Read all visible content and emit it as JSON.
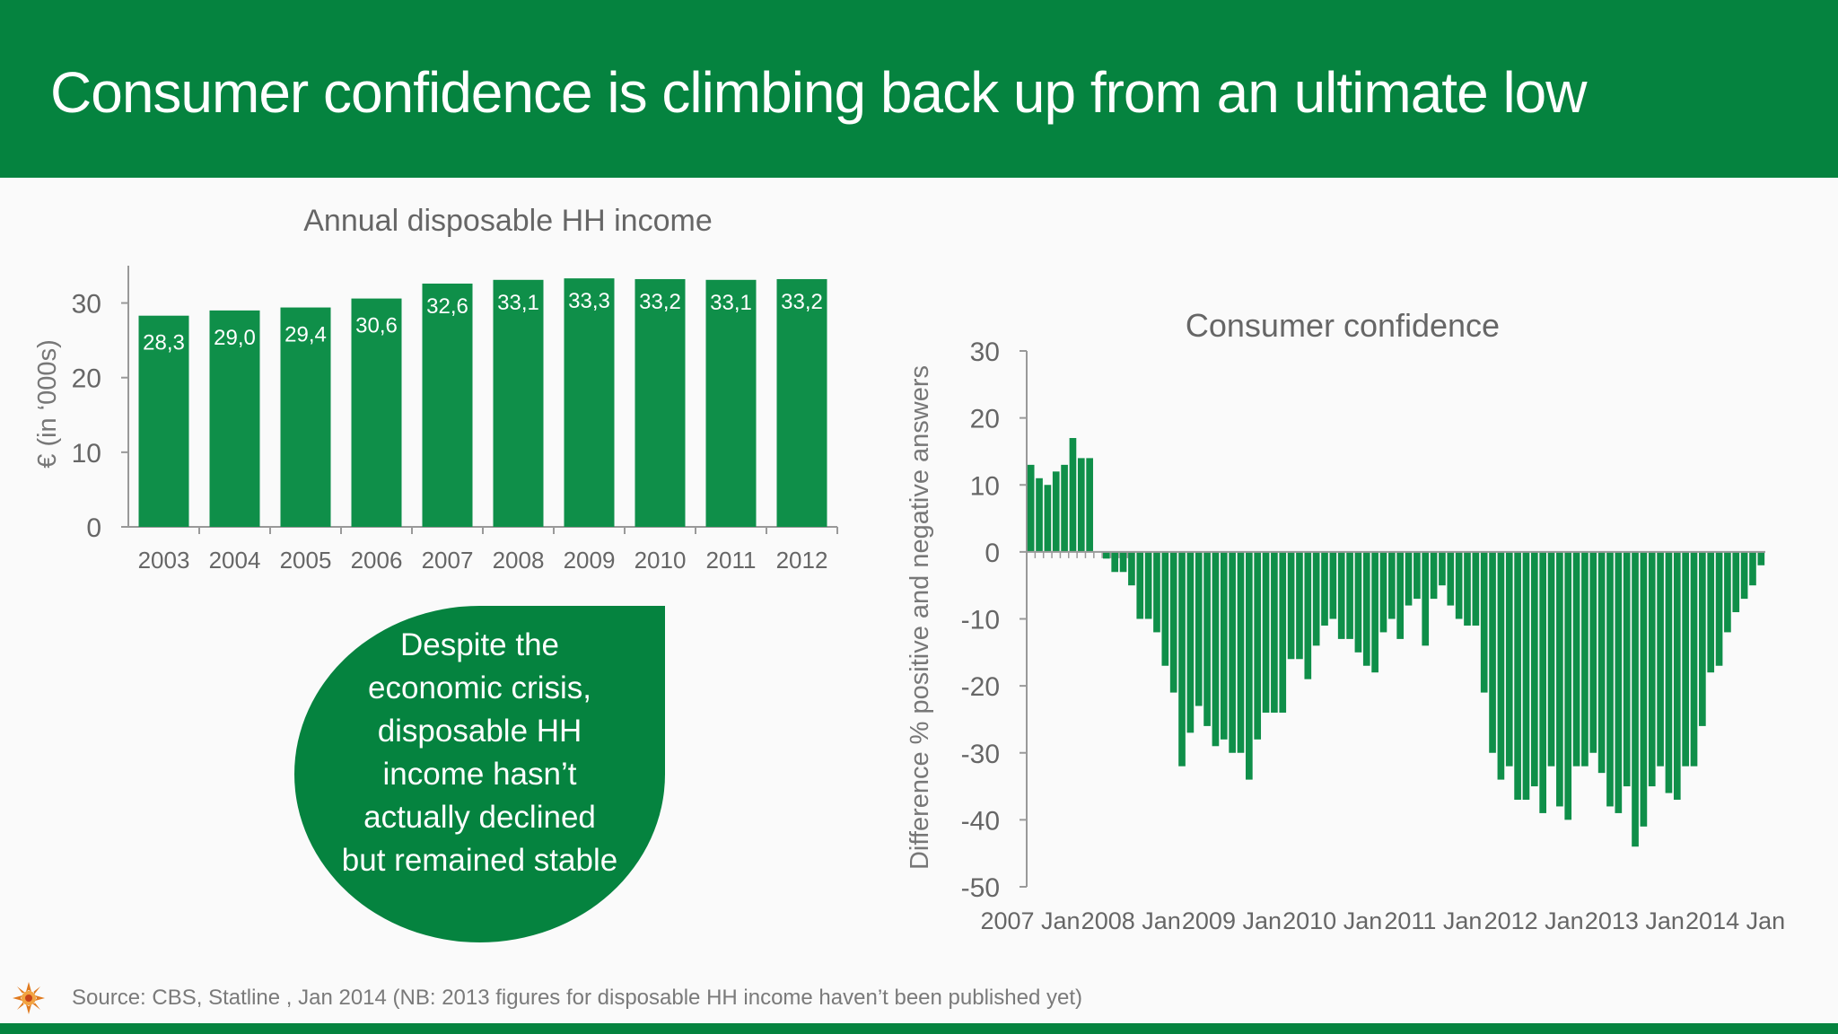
{
  "header": {
    "title": "Consumer confidence is climbing back up from an ultimate low"
  },
  "callout": {
    "text": "Despite the economic crisis, disposable HH income hasn’t actually declined but remained stable"
  },
  "footer": {
    "source": "Source: CBS, Statline , Jan 2014 (NB: 2013 figures for disposable HH income haven’t been published yet)"
  },
  "colors": {
    "brand_green": "#05833f",
    "bar_green": "#0f8f49"
  },
  "chart_data": [
    {
      "type": "bar",
      "title": "Annual disposable HH income",
      "xlabel": "",
      "ylabel": "€ (in ‘000s)",
      "categories": [
        "2003",
        "2004",
        "2005",
        "2006",
        "2007",
        "2008",
        "2009",
        "2010",
        "2011",
        "2012"
      ],
      "values": [
        28.3,
        29.0,
        29.4,
        30.6,
        32.6,
        33.1,
        33.3,
        33.2,
        33.1,
        33.2
      ],
      "data_labels": [
        "28,3",
        "29,0",
        "29,4",
        "30,6",
        "32,6",
        "33,1",
        "33,3",
        "33,2",
        "33,1",
        "33,2"
      ],
      "yticks": [
        "0",
        "10",
        "20",
        "30"
      ],
      "ylim": [
        0,
        35
      ],
      "grid": false,
      "legend": "none"
    },
    {
      "type": "bar",
      "title": "Consumer confidence",
      "xlabel": "",
      "ylabel": "Difference % positive and negative answers",
      "x_tick_labels": [
        "2007 Jan",
        "2008 Jan",
        "2009 Jan",
        "2010 Jan",
        "2011 Jan",
        "2012 Jan",
        "2013 Jan",
        "2014 Jan"
      ],
      "yticks": [
        "30",
        "20",
        "10",
        "0",
        "-10",
        "-20",
        "-30",
        "-40",
        "-50"
      ],
      "ylim": [
        -50,
        30
      ],
      "start": "2007 Jan",
      "frequency": "monthly",
      "values": [
        13,
        11,
        10,
        12,
        13,
        17,
        14,
        14,
        0,
        -1,
        -3,
        -3,
        -5,
        -10,
        -10,
        -12,
        -17,
        -21,
        -32,
        -27,
        -23,
        -26,
        -29,
        -28,
        -30,
        -30,
        -34,
        -28,
        -24,
        -24,
        -24,
        -16,
        -16,
        -19,
        -14,
        -11,
        -10,
        -13,
        -13,
        -15,
        -17,
        -18,
        -12,
        -10,
        -13,
        -8,
        -7,
        -14,
        -7,
        -5,
        -8,
        -10,
        -11,
        -11,
        -21,
        -30,
        -34,
        -32,
        -37,
        -37,
        -35,
        -39,
        -32,
        -38,
        -40,
        -32,
        -32,
        -30,
        -33,
        -38,
        -39,
        -35,
        -44,
        -41,
        -35,
        -32,
        -36,
        -37,
        -32,
        -32,
        -26,
        -18,
        -17,
        -12,
        -9,
        -7,
        -5,
        -2
      ],
      "grid": false,
      "legend": "none"
    }
  ]
}
